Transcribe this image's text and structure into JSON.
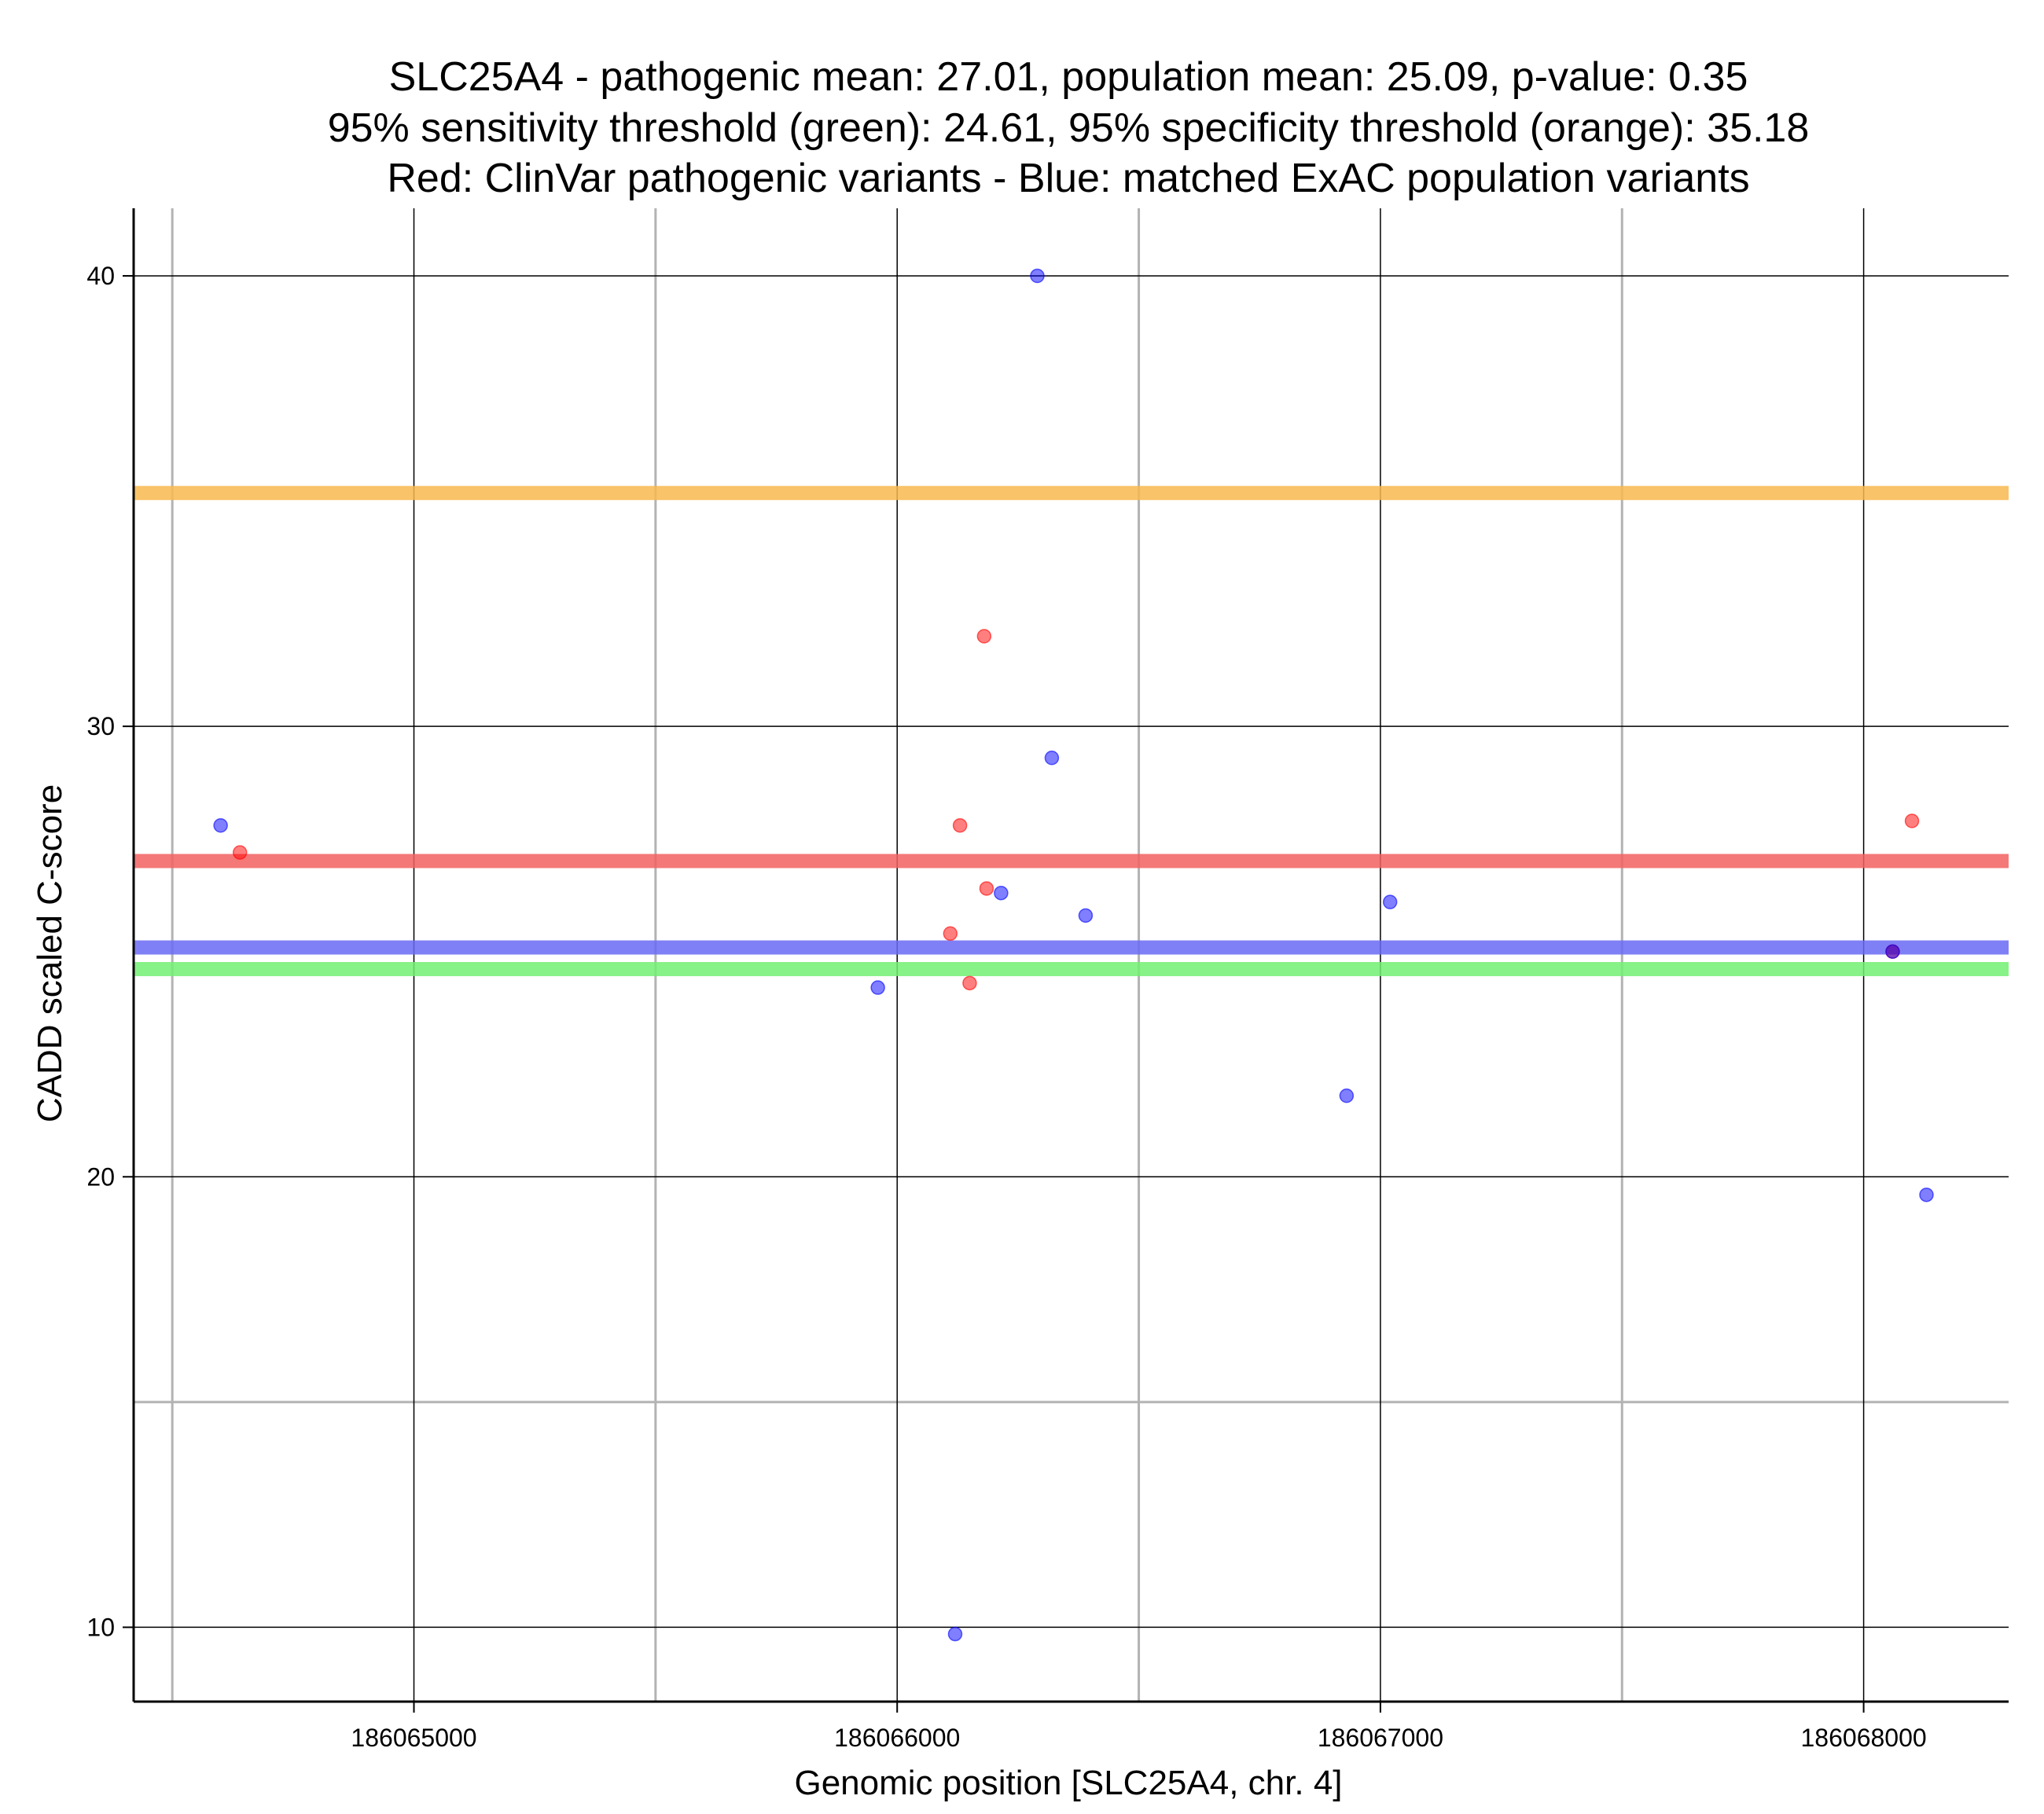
{
  "chart_data": {
    "type": "scatter",
    "title": [
      "SLC25A4 - pathogenic mean: 27.01, population mean: 25.09, p-value: 0.35",
      "95% sensitivity threshold (green): 24.61, 95% specificity threshold (orange): 35.18",
      "Red: ClinVar pathogenic variants - Blue: matched ExAC population variants"
    ],
    "xlabel": "Genomic position [SLC25A4, chr. 4]",
    "ylabel": "CADD scaled C-score",
    "xlim": [
      186064420,
      186068300
    ],
    "ylim": [
      8.35,
      41.5
    ],
    "x_ticks": [
      186065000,
      186066000,
      186067000,
      186068000
    ],
    "y_ticks": [
      10,
      20,
      30,
      40
    ],
    "x_minor_grid": [
      186064500,
      186065500,
      186066500,
      186067500
    ],
    "y_minor_grid": [
      15
    ],
    "grid": true,
    "hlines": [
      {
        "label": "95% specificity threshold",
        "value": 35.18,
        "color": "#f8b94f"
      },
      {
        "label": "pathogenic mean",
        "value": 27.01,
        "color": "#f26060"
      },
      {
        "label": "population mean",
        "value": 25.09,
        "color": "#6a6af5"
      },
      {
        "label": "95% sensitivity threshold",
        "value": 24.61,
        "color": "#72f072"
      }
    ],
    "series": [
      {
        "name": "ClinVar pathogenic variants",
        "color": "#ff0000",
        "points": [
          {
            "x": 186064640,
            "y": 27.2
          },
          {
            "x": 186066110,
            "y": 25.4
          },
          {
            "x": 186066130,
            "y": 27.8
          },
          {
            "x": 186066150,
            "y": 24.3
          },
          {
            "x": 186066180,
            "y": 32.0
          },
          {
            "x": 186066185,
            "y": 26.4
          },
          {
            "x": 186068060,
            "y": 25.0
          },
          {
            "x": 186068100,
            "y": 27.9
          }
        ]
      },
      {
        "name": "matched ExAC population variants",
        "color": "#0000ff",
        "points": [
          {
            "x": 186064600,
            "y": 27.8
          },
          {
            "x": 186065960,
            "y": 24.2
          },
          {
            "x": 186066120,
            "y": 9.85
          },
          {
            "x": 186066215,
            "y": 26.3
          },
          {
            "x": 186066290,
            "y": 40.0
          },
          {
            "x": 186066320,
            "y": 29.3
          },
          {
            "x": 186066390,
            "y": 25.8
          },
          {
            "x": 186066930,
            "y": 21.8
          },
          {
            "x": 186067020,
            "y": 26.1
          },
          {
            "x": 186068060,
            "y": 25.0
          },
          {
            "x": 186068130,
            "y": 19.6
          }
        ]
      }
    ]
  }
}
